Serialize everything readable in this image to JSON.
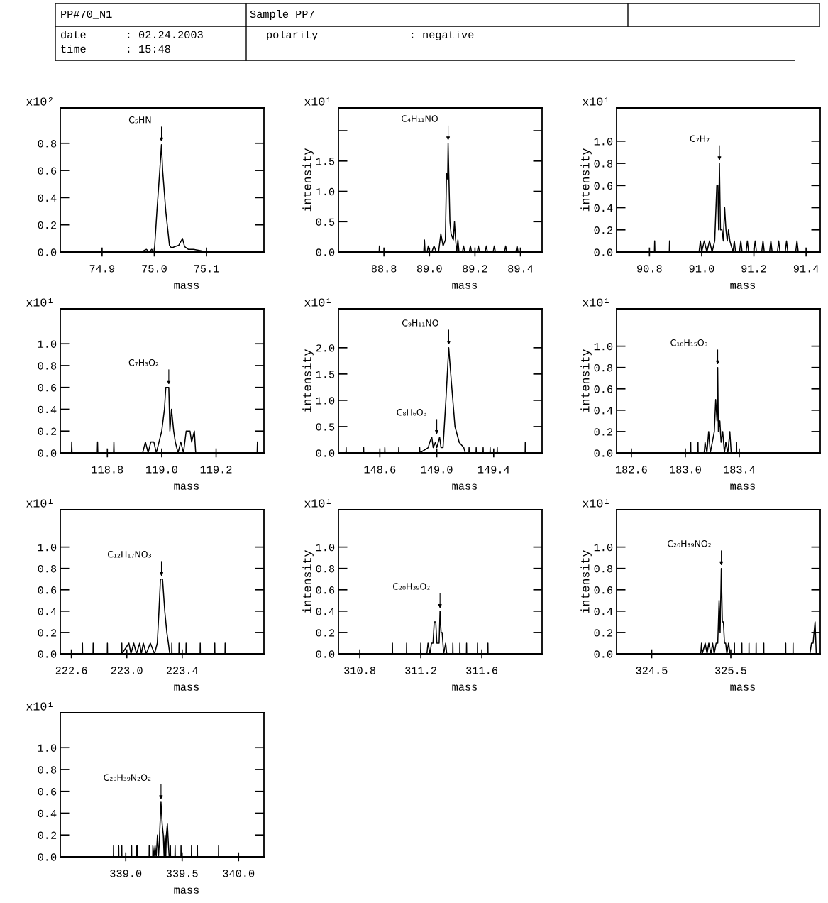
{
  "chart_data": [
    {
      "type": "other",
      "annotations": [
        "PP#70_N1",
        "Sample PP7",
        "date      : 02.24.2003",
        "time      : 15:48",
        "polarity              : negative"
      ]
    },
    {
      "type": "line",
      "color": "#000000",
      "xlabel": "mass",
      "xlim": [
        74.82,
        75.21
      ],
      "ylim": [
        0,
        1.06
      ],
      "xticks": [
        74.9,
        {
          "value": 75,
          "label": "75.0"
        },
        75.1
      ],
      "yticks": [
        {
          "value": 0,
          "label": "0.0"
        },
        0.2,
        0.4,
        0.6,
        0.8
      ],
      "annotations": [
        "x10²",
        {
          "text": "C₅HN",
          "x": 75.0137,
          "y": 0.79
        }
      ],
      "x": [
        74.82,
        74.975,
        74.985,
        74.99,
        74.995,
        75.0,
        75.005,
        75.0105,
        75.0137,
        75.016,
        75.022,
        75.029,
        75.033,
        75.04,
        75.047,
        75.054,
        75.058,
        75.065,
        75.075,
        75.088,
        75.1,
        75.21
      ],
      "values": [
        0,
        0,
        0.02,
        0,
        0.02,
        0,
        0.3,
        0.6,
        0.79,
        0.6,
        0.3,
        0.05,
        0.03,
        0.04,
        0.05,
        0.1,
        0.04,
        0.02,
        0.02,
        0.01,
        0,
        0
      ]
    },
    {
      "type": "line",
      "color": "#000000",
      "xlabel": "mass",
      "ylabel": "intensity",
      "xlim": [
        88.6,
        89.495
      ],
      "ylim": [
        0,
        2.375
      ],
      "xticks": [
        88.8,
        {
          "value": 89,
          "label": "89.0"
        },
        89.2,
        89.4
      ],
      "yticks": [
        {
          "value": 0,
          "label": "0.0"
        },
        0.5,
        {
          "value": 1,
          "label": "1.0"
        },
        1.5,
        {
          "value": 2,
          "label": null
        }
      ],
      "annotations": [
        "x10¹",
        {
          "text": "C₄H₁₁NO",
          "x": 89.082,
          "y": 1.79
        }
      ],
      "x": [
        88.6,
        88.779,
        88.78,
        88.781,
        88.975,
        88.978,
        88.981,
        88.99,
        88.995,
        89.0,
        89.01,
        89.02,
        89.03,
        89.04,
        89.05,
        89.06,
        89.07,
        89.075,
        89.08,
        89.082,
        89.085,
        89.09,
        89.095,
        89.105,
        89.11,
        89.115,
        89.12,
        89.125,
        89.13,
        89.145,
        89.15,
        89.155,
        89.175,
        89.18,
        89.185,
        89.21,
        89.215,
        89.22,
        89.245,
        89.25,
        89.255,
        89.28,
        89.285,
        89.29,
        89.33,
        89.335,
        89.34,
        89.38,
        89.385,
        89.39,
        89.495
      ],
      "values": [
        0,
        0,
        0.1,
        0,
        0,
        0.2,
        0,
        0,
        0.1,
        0,
        0,
        0.1,
        0,
        0,
        0.3,
        0.1,
        0.2,
        1.3,
        1.2,
        1.79,
        1.3,
        0.5,
        0.3,
        0.2,
        0.5,
        0.2,
        0,
        0.2,
        0,
        0,
        0.1,
        0,
        0,
        0.1,
        0,
        0,
        0.1,
        0,
        0,
        0.1,
        0,
        0,
        0.1,
        0,
        0,
        0.1,
        0,
        0,
        0.1,
        0,
        0
      ]
    },
    {
      "type": "line",
      "color": "#000000",
      "xlabel": "mass",
      "ylabel": "intensity",
      "xlim": [
        90.674,
        91.454
      ],
      "ylim": [
        0,
        1.3
      ],
      "xticks": [
        90.8,
        {
          "value": 91,
          "label": "91.0"
        },
        91.2,
        91.4
      ],
      "yticks": [
        {
          "value": 0,
          "label": "0.0"
        },
        0.2,
        0.4,
        0.6,
        0.8,
        {
          "value": 1,
          "label": "1.0"
        }
      ],
      "annotations": [
        "x10¹",
        {
          "text": "C₇H₇",
          "x": 91.068,
          "y": 0.8
        }
      ],
      "x": [
        90.674,
        90.819,
        90.82,
        90.821,
        90.876,
        90.877,
        90.878,
        90.99,
        90.995,
        91.0,
        91.01,
        91.02,
        91.03,
        91.04,
        91.05,
        91.058,
        91.062,
        91.065,
        91.068,
        91.072,
        91.078,
        91.083,
        91.088,
        91.093,
        91.098,
        91.103,
        91.108,
        91.12,
        91.125,
        91.13,
        91.145,
        91.15,
        91.155,
        91.17,
        91.175,
        91.18,
        91.2,
        91.205,
        91.21,
        91.23,
        91.235,
        91.24,
        91.26,
        91.265,
        91.27,
        91.29,
        91.295,
        91.3,
        91.32,
        91.325,
        91.33,
        91.36,
        91.365,
        91.37,
        91.454
      ],
      "values": [
        0,
        0,
        0.1,
        0,
        0,
        0.1,
        0,
        0,
        0.1,
        0,
        0.1,
        0,
        0.1,
        0,
        0.1,
        0.6,
        0.6,
        0.2,
        0.8,
        0.2,
        0.2,
        0.1,
        0.4,
        0.2,
        0.1,
        0.2,
        0.1,
        0,
        0.1,
        0,
        0,
        0.1,
        0,
        0,
        0.1,
        0,
        0,
        0.1,
        0,
        0,
        0.1,
        0,
        0,
        0.1,
        0,
        0,
        0.1,
        0,
        0,
        0.1,
        0,
        0,
        0.1,
        0,
        0
      ]
    },
    {
      "type": "line",
      "color": "#000000",
      "xlabel": "mass",
      "xlim": [
        118.627,
        119.376
      ],
      "ylim": [
        0,
        1.32
      ],
      "xticks": [
        118.8,
        {
          "value": 119,
          "label": "119.0"
        },
        119.2
      ],
      "yticks": [
        {
          "value": 0,
          "label": "0.0"
        },
        0.2,
        0.4,
        0.6,
        0.8,
        {
          "value": 1,
          "label": "1.0"
        }
      ],
      "annotations": [
        "x10¹",
        {
          "text": "C₇H₃O₂",
          "x": 119.026,
          "y": 0.6
        }
      ],
      "x": [
        118.627,
        118.668,
        118.669,
        118.67,
        118.763,
        118.764,
        118.765,
        118.823,
        118.824,
        118.825,
        118.93,
        118.94,
        118.95,
        118.96,
        118.971,
        118.98,
        118.99,
        119.0,
        119.01,
        119.015,
        119.02,
        119.026,
        119.03,
        119.036,
        119.044,
        119.05,
        119.06,
        119.07,
        119.08,
        119.09,
        119.095,
        119.104,
        119.11,
        119.12,
        119.125,
        119.351,
        119.352,
        119.353,
        119.376
      ],
      "values": [
        0,
        0,
        0.1,
        0,
        0,
        0.1,
        0,
        0,
        0.1,
        0,
        0,
        0.1,
        0,
        0.1,
        0.1,
        0,
        0.1,
        0.2,
        0.4,
        0.6,
        0.6,
        0.6,
        0.2,
        0.4,
        0.2,
        0.1,
        0,
        0.1,
        0,
        0.2,
        0.2,
        0.2,
        0.1,
        0.2,
        0,
        0,
        0.1,
        0,
        0
      ]
    },
    {
      "type": "line",
      "color": "#000000",
      "xlabel": "mass",
      "ylabel": "intensity",
      "xlim": [
        148.309,
        149.74
      ],
      "ylim": [
        0,
        2.74
      ],
      "xticks": [
        148.6,
        {
          "value": 149,
          "label": "149.0"
        },
        149.4
      ],
      "yticks": [
        {
          "value": 0,
          "label": "0.0"
        },
        0.5,
        {
          "value": 1,
          "label": "1.0"
        },
        1.5,
        {
          "value": 2,
          "label": "2.0"
        }
      ],
      "annotations": [
        "x10¹",
        {
          "text": "C₉H₁₁NO",
          "x": 149.084,
          "y": 2.0
        },
        {
          "text": "C₈H₆O₃",
          "x": 149.0,
          "y": 0.3
        }
      ],
      "x": [
        148.309,
        148.362,
        148.363,
        148.364,
        148.485,
        148.486,
        148.487,
        148.634,
        148.635,
        148.636,
        148.732,
        148.733,
        148.734,
        148.879,
        148.88,
        148.881,
        148.94,
        148.95,
        148.965,
        148.975,
        148.99,
        149.0,
        149.01,
        149.02,
        149.03,
        149.044,
        149.064,
        149.084,
        149.104,
        149.128,
        149.158,
        149.19,
        149.2,
        149.226,
        149.227,
        149.228,
        149.276,
        149.277,
        149.278,
        149.325,
        149.326,
        149.327,
        149.374,
        149.375,
        149.376,
        149.424,
        149.425,
        149.426,
        149.621,
        149.622,
        149.623,
        149.74
      ],
      "values": [
        0,
        0,
        0.1,
        0,
        0,
        0.1,
        0,
        0,
        0.1,
        0,
        0,
        0.1,
        0,
        0,
        0.1,
        0,
        0.1,
        0.2,
        0.3,
        0.1,
        0.2,
        0.1,
        0.2,
        0.3,
        0.1,
        0.1,
        1.0,
        2.0,
        1.3,
        0.5,
        0.2,
        0.1,
        0,
        0,
        0.1,
        0,
        0,
        0.1,
        0,
        0,
        0.1,
        0,
        0,
        0.1,
        0,
        0,
        0.1,
        0,
        0,
        0.2,
        0,
        0
      ]
    },
    {
      "type": "line",
      "color": "#000000",
      "xlabel": "mass",
      "ylabel": "intensity",
      "xlim": [
        182.49,
        184.0
      ],
      "ylim": [
        0,
        1.35
      ],
      "xticks": [
        182.6,
        {
          "value": 183,
          "label": "183.0"
        },
        183.4
      ],
      "yticks": [
        {
          "value": 0,
          "label": "0.0"
        },
        0.2,
        0.4,
        0.6,
        0.8,
        {
          "value": 1,
          "label": "1.0"
        }
      ],
      "annotations": [
        "x10¹",
        {
          "text": "C₁₀H₁₅O₃",
          "x": 183.24,
          "y": 0.8
        }
      ],
      "x": [
        182.49,
        183.039,
        183.04,
        183.041,
        183.093,
        183.094,
        183.095,
        183.14,
        183.146,
        183.16,
        183.173,
        183.185,
        183.2,
        183.215,
        183.225,
        183.235,
        183.24,
        183.245,
        183.256,
        183.265,
        183.277,
        183.29,
        183.3,
        183.315,
        183.33,
        183.34,
        183.379,
        183.38,
        183.381,
        184.0
      ],
      "values": [
        0,
        0,
        0.1,
        0,
        0,
        0.1,
        0,
        0,
        0.1,
        0,
        0.2,
        0,
        0.1,
        0.2,
        0.5,
        0.3,
        0.8,
        0.2,
        0.3,
        0.1,
        0.2,
        0,
        0.1,
        0,
        0.2,
        0,
        0,
        0.1,
        0,
        0
      ]
    },
    {
      "type": "line",
      "color": "#000000",
      "xlabel": "mass",
      "xlim": [
        222.52,
        223.99
      ],
      "ylim": [
        0,
        1.35
      ],
      "xticks": [
        222.6,
        {
          "value": 223,
          "label": "223.0"
        },
        223.4
      ],
      "yticks": [
        {
          "value": 0,
          "label": "0.0"
        },
        0.2,
        0.4,
        0.6,
        0.8,
        {
          "value": 1,
          "label": "1.0"
        }
      ],
      "annotations": [
        "x10¹",
        {
          "text": "C₁₂H₁₇NO₃",
          "x": 223.25,
          "y": 0.7
        }
      ],
      "x": [
        222.52,
        222.679,
        222.68,
        222.681,
        222.756,
        222.757,
        222.758,
        222.859,
        222.86,
        222.861,
        222.963,
        222.964,
        222.965,
        223.015,
        223.03,
        223.05,
        223.07,
        223.093,
        223.105,
        223.119,
        223.14,
        223.17,
        223.2,
        223.22,
        223.232,
        223.243,
        223.258,
        223.274,
        223.289,
        223.3,
        223.31,
        223.324,
        223.325,
        223.326,
        223.376,
        223.377,
        223.378,
        223.427,
        223.428,
        223.429,
        223.529,
        223.53,
        223.531,
        223.634,
        223.635,
        223.636,
        223.709,
        223.71,
        223.711,
        223.99
      ],
      "values": [
        0,
        0,
        0.1,
        0,
        0,
        0.1,
        0,
        0,
        0.1,
        0,
        0,
        0.1,
        0,
        0.1,
        0,
        0.1,
        0,
        0.1,
        0,
        0.1,
        0,
        0.1,
        0,
        0.1,
        0.4,
        0.7,
        0.7,
        0.4,
        0.2,
        0.1,
        0,
        0,
        0.1,
        0,
        0,
        0.1,
        0,
        0,
        0.1,
        0,
        0,
        0.1,
        0,
        0,
        0.1,
        0,
        0,
        0.1,
        0,
        0
      ]
    },
    {
      "type": "line",
      "color": "#000000",
      "xlabel": "mass",
      "ylabel": "intensity",
      "xlim": [
        310.66,
        311.995
      ],
      "ylim": [
        0,
        1.35
      ],
      "xticks": [
        310.8,
        311.2,
        311.6
      ],
      "yticks": [
        {
          "value": 0,
          "label": "0.0"
        },
        0.2,
        0.4,
        0.6,
        0.8,
        {
          "value": 1,
          "label": "1.0"
        }
      ],
      "annotations": [
        "x10¹",
        {
          "text": "C₂₀H₃₉O₂",
          "x": 311.326,
          "y": 0.4
        }
      ],
      "x": [
        310.66,
        311.013,
        311.014,
        311.015,
        311.106,
        311.107,
        311.108,
        311.199,
        311.2,
        311.201,
        311.24,
        311.247,
        311.26,
        311.27,
        311.28,
        311.288,
        311.298,
        311.305,
        311.312,
        311.32,
        311.326,
        311.333,
        311.34,
        311.35,
        311.363,
        311.37,
        311.409,
        311.41,
        311.411,
        311.455,
        311.456,
        311.457,
        311.499,
        311.5,
        311.501,
        311.571,
        311.572,
        311.573,
        311.639,
        311.64,
        311.641,
        311.995
      ],
      "values": [
        0,
        0,
        0.1,
        0,
        0,
        0.1,
        0,
        0,
        0.1,
        0,
        0,
        0.1,
        0,
        0.1,
        0.1,
        0.3,
        0.3,
        0.1,
        0.1,
        0.1,
        0.4,
        0.2,
        0.2,
        0,
        0.1,
        0,
        0,
        0.1,
        0,
        0,
        0.1,
        0,
        0,
        0.1,
        0,
        0,
        0.1,
        0,
        0,
        0.1,
        0,
        0
      ]
    },
    {
      "type": "line",
      "color": "#000000",
      "xlabel": "mass",
      "ylabel": "intensity",
      "xlim": [
        324.056,
        326.63
      ],
      "ylim": [
        0,
        1.35
      ],
      "xticks": [
        324.5,
        325.5
      ],
      "yticks": [
        {
          "value": 0,
          "label": "0.0"
        },
        0.2,
        0.4,
        0.6,
        0.8,
        {
          "value": 1,
          "label": "1.0"
        }
      ],
      "annotations": [
        "x10¹",
        {
          "text": "C₂₀H₃₉NO₂",
          "x": 325.38,
          "y": 0.8
        }
      ],
      "x": [
        324.056,
        325.12,
        325.13,
        325.14,
        325.176,
        325.2,
        325.222,
        325.25,
        325.27,
        325.29,
        325.315,
        325.335,
        325.352,
        325.365,
        325.38,
        325.393,
        325.407,
        325.42,
        325.435,
        325.45,
        325.472,
        325.49,
        325.545,
        325.546,
        325.547,
        325.639,
        325.64,
        325.641,
        325.729,
        325.73,
        325.731,
        325.819,
        325.82,
        325.821,
        325.916,
        325.917,
        325.918,
        326.193,
        326.194,
        326.195,
        326.286,
        326.287,
        326.288,
        326.5,
        326.52,
        326.54,
        326.565,
        326.58,
        326.63
      ],
      "values": [
        0,
        0,
        0.1,
        0,
        0.1,
        0,
        0.1,
        0,
        0.1,
        0,
        0.1,
        0.1,
        0.5,
        0.2,
        0.8,
        0.3,
        0.3,
        0.1,
        0.1,
        0,
        0.1,
        0,
        0,
        0.1,
        0,
        0,
        0.1,
        0,
        0,
        0.1,
        0,
        0,
        0.1,
        0,
        0,
        0.1,
        0,
        0,
        0.1,
        0,
        0,
        0.1,
        0,
        0,
        0.1,
        0.1,
        0.3,
        0,
        0
      ]
    },
    {
      "type": "line",
      "color": "#000000",
      "xlabel": "mass",
      "xlim": [
        338.42,
        340.225
      ],
      "ylim": [
        0,
        1.32
      ],
      "xticks": [
        {
          "value": 339,
          "label": "339.0"
        },
        339.5,
        {
          "value": 340,
          "label": "340.0"
        }
      ],
      "yticks": [
        {
          "value": 0,
          "label": "0.0"
        },
        0.2,
        0.4,
        0.6,
        0.8,
        {
          "value": 1,
          "label": "1.0"
        }
      ],
      "annotations": [
        "x10¹",
        {
          "text": "C₂₀H₃₉N₂O₂",
          "x": 339.3125,
          "y": 0.5
        }
      ],
      "x": [
        338.42,
        338.891,
        338.892,
        338.893,
        338.936,
        338.9375,
        338.939,
        338.964,
        338.965,
        338.966,
        339.051,
        339.052,
        339.053,
        339.093,
        339.094,
        339.1,
        339.104,
        339.105,
        339.207,
        339.208,
        339.209,
        339.239,
        339.24,
        339.25,
        339.26,
        339.27,
        339.281,
        339.29,
        339.296,
        339.304,
        339.3125,
        339.323,
        339.333,
        339.34,
        339.348,
        339.355,
        339.36,
        339.369,
        339.379,
        339.385,
        339.395,
        339.396,
        339.397,
        339.436,
        339.4375,
        339.439,
        339.489,
        339.49,
        339.491,
        339.582,
        339.583,
        339.584,
        339.634,
        339.635,
        339.636,
        339.822,
        339.823,
        339.824,
        340.225
      ],
      "values": [
        0,
        0,
        0.1,
        0,
        0,
        0.1,
        0,
        0,
        0.1,
        0,
        0,
        0.1,
        0,
        0,
        0.1,
        0,
        0.1,
        0,
        0,
        0.1,
        0,
        0,
        0.1,
        0,
        0.1,
        0,
        0.2,
        0,
        0.1,
        0.3,
        0.5,
        0.3,
        0.2,
        0,
        0.2,
        0,
        0.2,
        0.3,
        0.1,
        0,
        0,
        0.1,
        0,
        0,
        0.1,
        0,
        0,
        0.1,
        0,
        0,
        0.1,
        0,
        0,
        0.1,
        0,
        0,
        0.1,
        0,
        0
      ]
    }
  ]
}
